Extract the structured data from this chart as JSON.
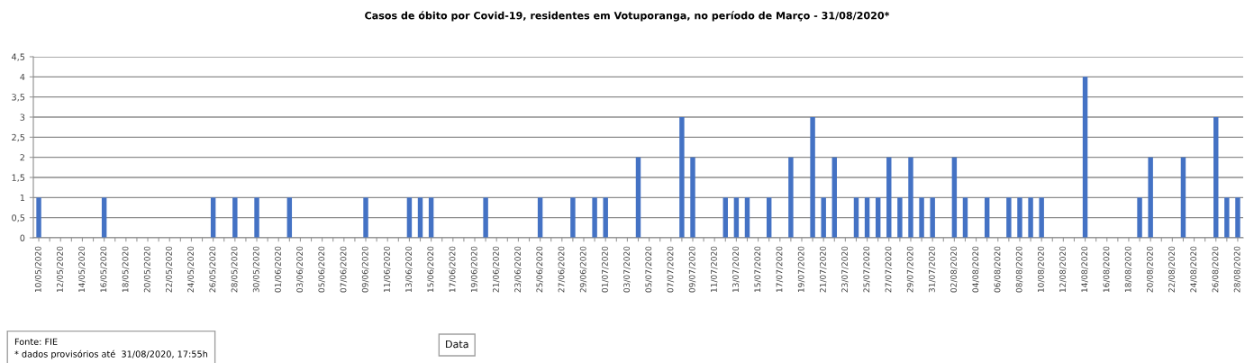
{
  "chart_data": {
    "type": "bar",
    "title": "Casos de óbito por Covid-19, residentes em Votuporanga, no período de Março - 31/08/2020*",
    "xlabel": "Data",
    "categories": [
      "10/05/2020",
      null,
      "12/05/2020",
      null,
      "14/05/2020",
      null,
      "16/05/2020",
      null,
      "18/05/2020",
      null,
      "20/05/2020",
      null,
      "22/05/2020",
      null,
      "24/05/2020",
      null,
      "26/05/2020",
      null,
      "28/05/2020",
      null,
      "30/05/2020",
      null,
      "01/06/2020",
      null,
      "03/06/2020",
      null,
      "05/06/2020",
      null,
      "07/06/2020",
      null,
      "09/06/2020",
      null,
      "11/06/2020",
      null,
      "13/06/2020",
      null,
      "15/06/2020",
      null,
      "17/06/2020",
      null,
      "19/06/2020",
      null,
      "21/06/2020",
      null,
      "23/06/2020",
      null,
      "25/06/2020",
      null,
      "27/06/2020",
      null,
      "29/06/2020",
      null,
      "01/07/2020",
      null,
      "03/07/2020",
      null,
      "05/07/2020",
      null,
      "07/07/2020",
      null,
      "09/07/2020",
      null,
      "11/07/2020",
      null,
      "13/07/2020",
      null,
      "15/07/2020",
      null,
      "17/07/2020",
      null,
      "19/07/2020",
      null,
      "21/07/2020",
      null,
      "23/07/2020",
      null,
      "25/07/2020",
      null,
      "27/07/2020",
      null,
      "29/07/2020",
      null,
      "31/07/2020",
      null,
      "02/08/2020",
      null,
      "04/08/2020",
      null,
      "06/08/2020",
      null,
      "08/08/2020",
      null,
      "10/08/2020",
      null,
      "12/08/2020",
      null,
      "14/08/2020",
      null,
      "16/08/2020",
      null,
      "18/08/2020",
      null,
      "20/08/2020",
      null,
      "22/08/2020",
      null,
      "24/08/2020",
      null,
      "26/08/2020",
      null,
      "28/08/2020"
    ],
    "values": [
      1,
      0,
      0,
      0,
      0,
      0,
      1,
      0,
      0,
      0,
      0,
      0,
      0,
      0,
      0,
      0,
      1,
      0,
      1,
      0,
      1,
      0,
      0,
      1,
      0,
      0,
      0,
      0,
      0,
      0,
      1,
      0,
      0,
      0,
      1,
      1,
      1,
      0,
      0,
      0,
      0,
      1,
      0,
      0,
      0,
      0,
      1,
      0,
      0,
      1,
      0,
      1,
      1,
      0,
      0,
      2,
      0,
      0,
      0,
      3,
      2,
      0,
      0,
      1,
      1,
      1,
      0,
      1,
      0,
      2,
      0,
      3,
      1,
      2,
      0,
      1,
      1,
      1,
      2,
      1,
      2,
      1,
      1,
      0,
      2,
      1,
      0,
      1,
      0,
      1,
      1,
      1,
      1,
      0,
      0,
      0,
      4,
      0,
      0,
      0,
      0,
      1,
      2,
      0,
      0,
      2,
      0,
      0,
      3,
      1,
      1
    ],
    "color": "#4472c4",
    "ylim": [
      0,
      4.5
    ],
    "yticks": [
      0,
      {
        "value": 0.5,
        "label": "0,5"
      },
      1,
      {
        "value": 1.5,
        "label": "1,5"
      },
      2,
      {
        "value": 2.5,
        "label": "2,5"
      },
      3,
      {
        "value": 3.5,
        "label": "3,5"
      },
      4,
      {
        "value": 4.5,
        "label": "4,5"
      }
    ],
    "grid": "y",
    "legend": false,
    "annotations": [
      "Fonte: FIE\n* dados provisórios até  31/08/2020, 17:55h"
    ]
  }
}
